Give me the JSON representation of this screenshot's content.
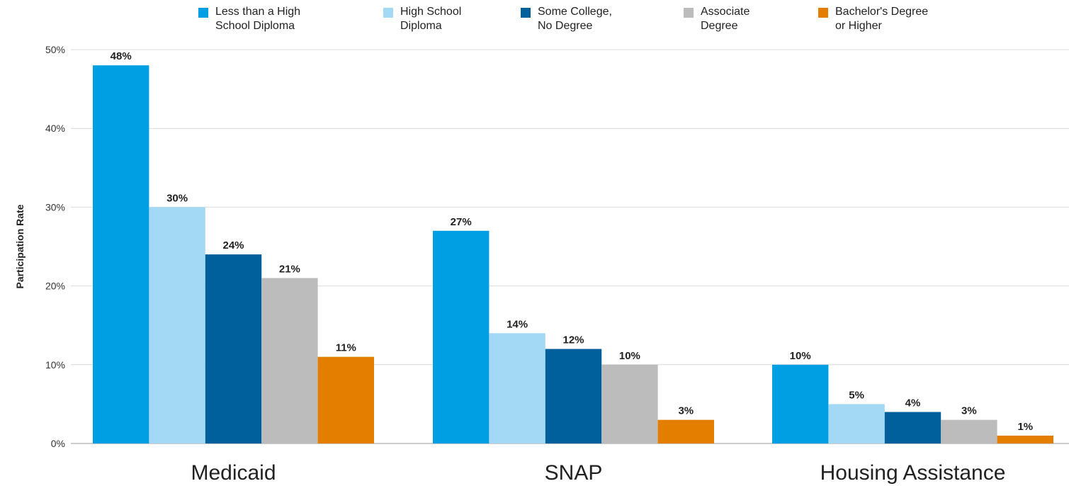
{
  "chart_data": {
    "type": "bar",
    "categories": [
      "Medicaid",
      "SNAP",
      "Housing Assistance"
    ],
    "series": [
      {
        "name": "Less than a High\nSchool Diploma",
        "color": "#009fe3",
        "values": [
          48,
          27,
          10
        ]
      },
      {
        "name": "High School\nDiploma",
        "color": "#a3d9f5",
        "values": [
          30,
          14,
          5
        ]
      },
      {
        "name": "Some College,\nNo Degree",
        "color": "#00609c",
        "values": [
          24,
          12,
          4
        ]
      },
      {
        "name": "Associate\nDegree",
        "color": "#bcbcbc",
        "values": [
          21,
          10,
          3
        ]
      },
      {
        "name": "Bachelor's Degree\nor Higher",
        "color": "#e37e00",
        "values": [
          11,
          3,
          1
        ]
      }
    ],
    "ylabel": "Participation Rate",
    "ylim": [
      0,
      50
    ],
    "yticks": [
      "0%",
      "10%",
      "20%",
      "30%",
      "40%",
      "50%"
    ],
    "ytick_values": [
      0,
      10,
      20,
      30,
      40,
      50
    ],
    "value_suffix": "%",
    "grid": true,
    "legend_position": "top"
  }
}
